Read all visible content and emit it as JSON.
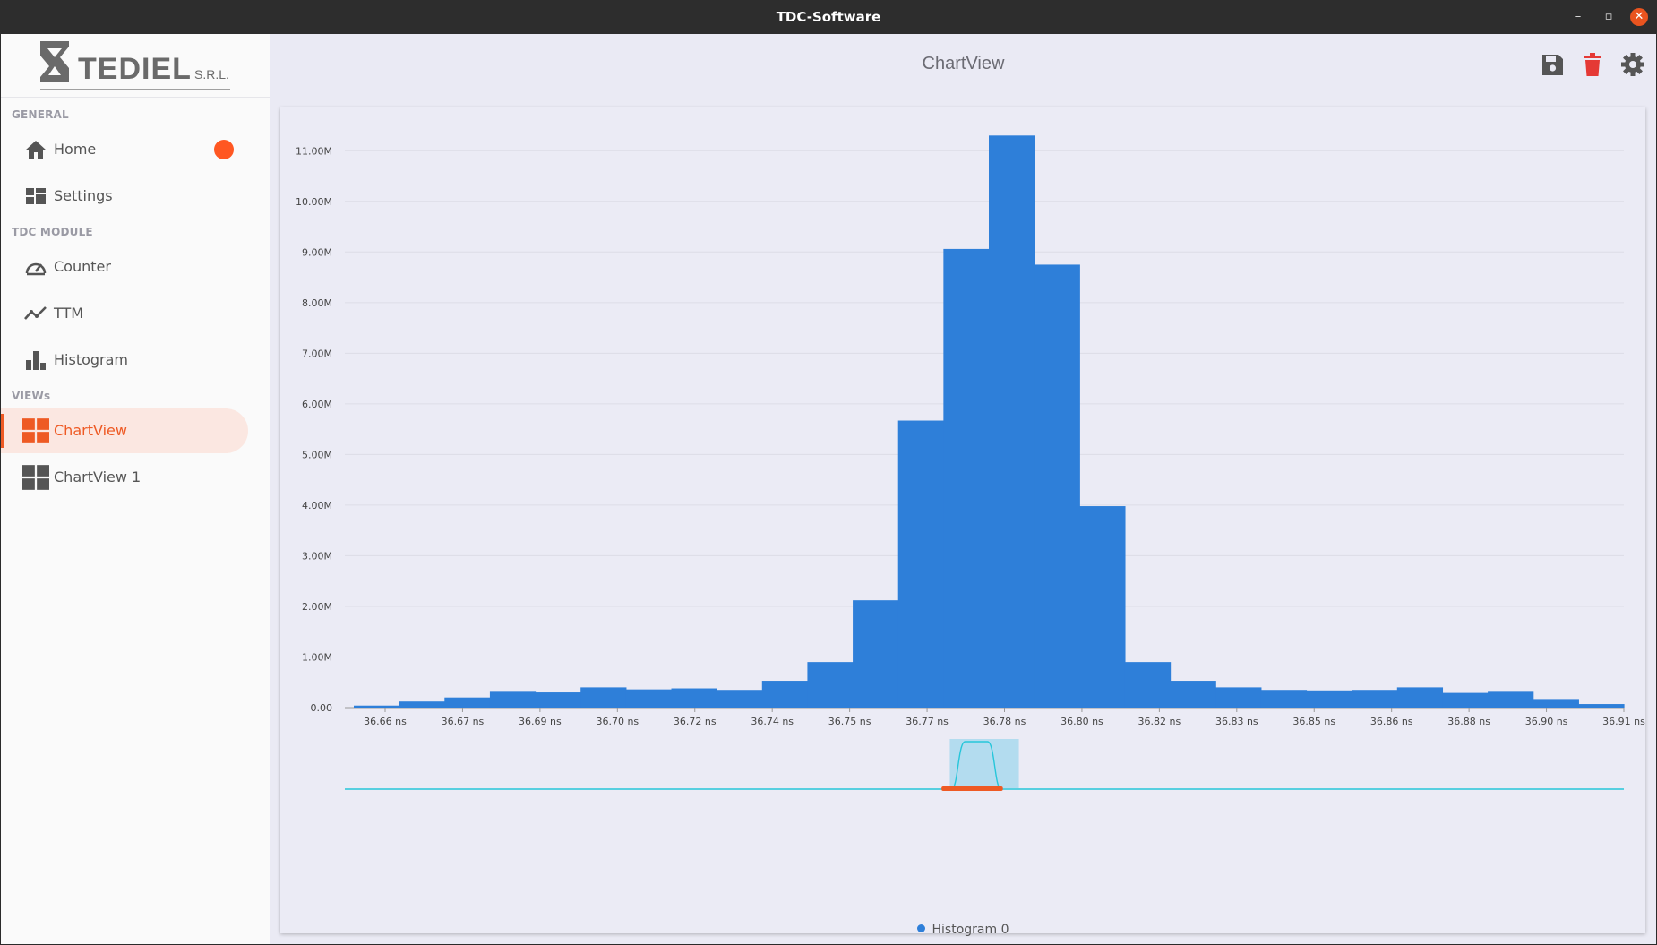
{
  "window": {
    "title": "TDC-Software",
    "minimize": "–",
    "maximize": "▫",
    "close": "✕"
  },
  "sidebar": {
    "logo": {
      "name": "TEDIEL",
      "suffix": "S.R.L."
    },
    "sections": [
      {
        "label": "GENERAL",
        "items": [
          {
            "label": "Home",
            "icon": "home-icon"
          },
          {
            "label": "Settings",
            "icon": "settings-dashboard-icon"
          }
        ]
      },
      {
        "label": "TDC MODULE",
        "items": [
          {
            "label": "Counter",
            "icon": "speedometer-icon"
          },
          {
            "label": "TTM",
            "icon": "trend-line-icon"
          },
          {
            "label": "Histogram",
            "icon": "bar-chart-icon"
          }
        ]
      },
      {
        "label": "VIEWs",
        "items": [
          {
            "label": "ChartView",
            "icon": "grid-icon",
            "active": true
          },
          {
            "label": "ChartView 1",
            "icon": "grid-icon"
          }
        ]
      }
    ]
  },
  "header": {
    "title": "ChartView"
  },
  "colors": {
    "accent": "#ee5a24",
    "bar": "#2e7fd9",
    "delete": "#e53935",
    "icon_gray": "#555555",
    "navigator_line": "#26c6da"
  },
  "chart_data": {
    "type": "bar",
    "series": [
      {
        "name": "Histogram 0",
        "values": [
          0.04,
          0.12,
          0.2,
          0.33,
          0.3,
          0.4,
          0.36,
          0.38,
          0.35,
          0.53,
          0.9,
          2.12,
          5.67,
          9.06,
          11.3,
          8.75,
          3.98,
          0.9,
          0.53,
          0.4,
          0.35,
          0.34,
          0.35,
          0.4,
          0.29,
          0.33,
          0.17,
          0.07
        ]
      }
    ],
    "unit": "M",
    "ylim": [
      0,
      11.5
    ],
    "yticks": [
      "0.00",
      "1.00M",
      "2.00M",
      "3.00M",
      "4.00M",
      "5.00M",
      "6.00M",
      "7.00M",
      "8.00M",
      "9.00M",
      "10.00M",
      "11.00M"
    ],
    "xticks": [
      "36.66 ns",
      "36.67 ns",
      "36.69 ns",
      "36.70 ns",
      "36.72 ns",
      "36.74 ns",
      "36.75 ns",
      "36.77 ns",
      "36.78 ns",
      "36.80 ns",
      "36.82 ns",
      "36.83 ns",
      "36.85 ns",
      "36.86 ns",
      "36.88 ns",
      "36.90 ns",
      "36.91 ns"
    ],
    "xlim_ns": [
      36.652,
      36.912
    ],
    "grid": true,
    "legend": "bottom-center",
    "navigator": {
      "range_start": 0.475,
      "range_end": 0.525,
      "selection_start_fraction": 0.47,
      "selection_end_fraction": 0.525
    }
  }
}
